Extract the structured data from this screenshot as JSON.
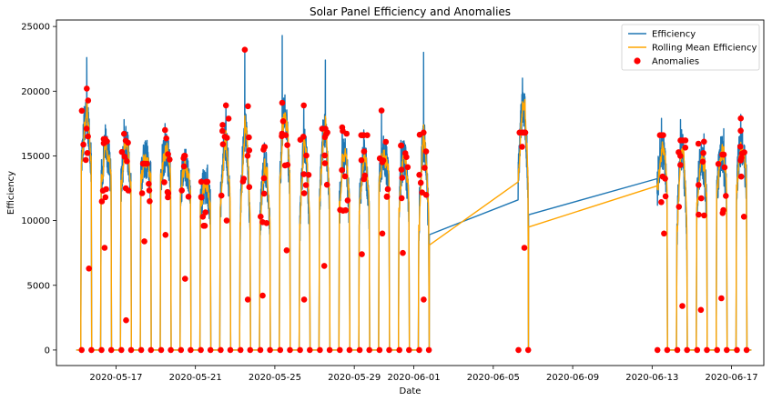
{
  "chart_data": {
    "type": "line",
    "title": "Solar Panel Efficiency and Anomalies",
    "xlabel": "Date",
    "ylabel": "Efficiency",
    "ylim": [
      -1200,
      25500
    ],
    "xlim": [
      "2020-05-14T00:00",
      "2020-06-18T15:00"
    ],
    "x_ticks": [
      "2020-05-17",
      "2020-05-21",
      "2020-05-25",
      "2020-05-29",
      "2020-06-01",
      "2020-06-05",
      "2020-06-09",
      "2020-06-13",
      "2020-06-17"
    ],
    "x_tick_labels": [
      "2020-05-17",
      "2020-05-21",
      "2020-05-25",
      "2020-05-29",
      "2020-06-01",
      "2020-06-05",
      "2020-06-09",
      "2020-06-13",
      "2020-06-17"
    ],
    "y_ticks": [
      0,
      5000,
      10000,
      15000,
      20000,
      25000
    ],
    "y_tick_labels": [
      "0",
      "5000",
      "10000",
      "15000",
      "20000",
      "25000"
    ],
    "legend": {
      "placement": "upper right",
      "entries": [
        "Efficiency",
        "Rolling Mean Efficiency",
        "Anomalies"
      ]
    },
    "colors": {
      "efficiency": "#1f77b4",
      "rolling": "#ffa500",
      "anomalies": "#ff0000"
    },
    "day_blocks": [
      {
        "day": "2020-05-15",
        "peak": 22600,
        "low": 11000,
        "rolling": 18000,
        "anomaly_high": 20200,
        "anomaly_low": 6300
      },
      {
        "day": "2020-05-16",
        "peak": 17400,
        "low": 11200,
        "rolling": 15500,
        "anomaly_high": 16300,
        "anomaly_low": 7900
      },
      {
        "day": "2020-05-17",
        "peak": 17800,
        "low": 9800,
        "rolling": 15800,
        "anomaly_high": 16700,
        "anomaly_low": 2300
      },
      {
        "day": "2020-05-18",
        "peak": 16200,
        "low": 11500,
        "rolling": 14800,
        "anomaly_high": 14400,
        "anomaly_low": 8400
      },
      {
        "day": "2020-05-19",
        "peak": 17500,
        "low": 11800,
        "rolling": 15300,
        "anomaly_high": 17000,
        "anomaly_low": 8900
      },
      {
        "day": "2020-05-20",
        "peak": 15500,
        "low": 10600,
        "rolling": 14200,
        "anomaly_high": 15000,
        "anomaly_low": 5500
      },
      {
        "day": "2020-05-21",
        "peak": 14300,
        "low": 9600,
        "rolling": 12800,
        "anomaly_high": 13000,
        "anomaly_low": 10300
      },
      {
        "day": "2020-05-22",
        "peak": 19100,
        "low": 6200,
        "rolling": 16100,
        "anomaly_high": 18900,
        "anomaly_low": 10000
      },
      {
        "day": "2020-05-23",
        "peak": 23300,
        "low": 3900,
        "rolling": 16900,
        "anomaly_high": 23200,
        "anomaly_low": 3900
      },
      {
        "day": "2020-05-24",
        "peak": 16000,
        "low": 5500,
        "rolling": 14200,
        "anomaly_high": 15700,
        "anomaly_low": 4200
      },
      {
        "day": "2020-05-25",
        "peak": 24300,
        "low": 7700,
        "rolling": 18400,
        "anomaly_high": 19100,
        "anomaly_low": 7700
      },
      {
        "day": "2020-05-26",
        "peak": 19000,
        "low": 3900,
        "rolling": 15800,
        "anomaly_high": 18900,
        "anomaly_low": 3900
      },
      {
        "day": "2020-05-27",
        "peak": 22400,
        "low": 6500,
        "rolling": 17000,
        "anomaly_high": 17100,
        "anomaly_low": 6500
      },
      {
        "day": "2020-05-28",
        "peak": 17300,
        "low": 7400,
        "rolling": 15000,
        "anomaly_high": 17200,
        "anomaly_low": 10800
      },
      {
        "day": "2020-05-29",
        "peak": 17000,
        "low": 7400,
        "rolling": 14800,
        "anomaly_high": 16600,
        "anomaly_low": 7400
      },
      {
        "day": "2020-05-30",
        "peak": 18500,
        "low": 10500,
        "rolling": 15000,
        "anomaly_high": 18500,
        "anomaly_low": 9000
      },
      {
        "day": "2020-05-31",
        "peak": 16200,
        "low": 7500,
        "rolling": 14800,
        "anomaly_high": 15800,
        "anomaly_low": 7500
      },
      {
        "day": "2020-06-01",
        "peak": 23000,
        "low": 3900,
        "rolling": 16200,
        "anomaly_high": 16800,
        "anomaly_low": 3900
      },
      {
        "day": "2020-06-06",
        "peak": 21000,
        "low": 7900,
        "rolling": 19000,
        "anomaly_high": 16800,
        "anomaly_low": 7900
      },
      {
        "day": "2020-06-13",
        "peak": 17900,
        "low": 9500,
        "rolling": 15500,
        "anomaly_high": 16600,
        "anomaly_low": 9000
      },
      {
        "day": "2020-06-14",
        "peak": 17800,
        "low": 3500,
        "rolling": 15500,
        "anomaly_high": 16200,
        "anomaly_low": 3400
      },
      {
        "day": "2020-06-15",
        "peak": 16700,
        "low": 8500,
        "rolling": 14700,
        "anomaly_high": 16100,
        "anomaly_low": 3100
      },
      {
        "day": "2020-06-16",
        "peak": 17100,
        "low": 9800,
        "rolling": 15000,
        "anomaly_high": 15100,
        "anomaly_low": 4000
      },
      {
        "day": "2020-06-17",
        "peak": 18200,
        "low": 10600,
        "rolling": 15800,
        "anomaly_high": 17900,
        "anomaly_low": 10300
      }
    ]
  }
}
